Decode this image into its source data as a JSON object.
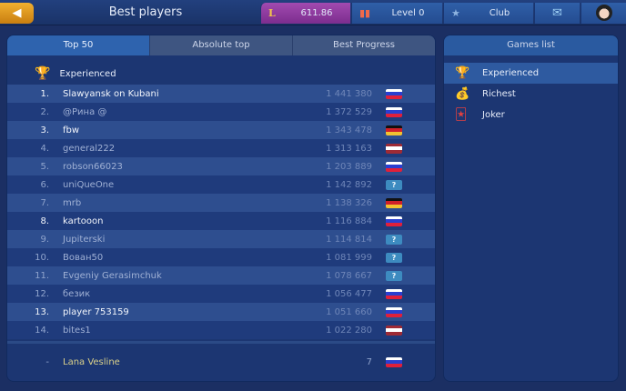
{
  "header": {
    "title": "Best players",
    "coins": "611.86",
    "level": "Level 0",
    "club": "Club"
  },
  "tabs": [
    "Top 50",
    "Absolute top",
    "Best Progress"
  ],
  "category": "Experienced",
  "rows": [
    {
      "rank": "1.",
      "name": "Slawyansk on Kubani",
      "score": "1 441 380",
      "flag": "ru",
      "highlight": true
    },
    {
      "rank": "2.",
      "name": "@Рина @",
      "score": "1 372 529",
      "flag": "ru",
      "highlight": false
    },
    {
      "rank": "3.",
      "name": "fbw",
      "score": "1 343 478",
      "flag": "de",
      "highlight": true
    },
    {
      "rank": "4.",
      "name": "general222",
      "score": "1 313 163",
      "flag": "lv",
      "highlight": false
    },
    {
      "rank": "5.",
      "name": "robson66023",
      "score": "1 203 889",
      "flag": "ru",
      "highlight": false
    },
    {
      "rank": "6.",
      "name": "uniQueOne",
      "score": "1 142 892",
      "flag": "?",
      "highlight": false
    },
    {
      "rank": "7.",
      "name": "mrb",
      "score": "1 138 326",
      "flag": "de",
      "highlight": false
    },
    {
      "rank": "8.",
      "name": "kartooon",
      "score": "1 116 884",
      "flag": "ru",
      "highlight": true
    },
    {
      "rank": "9.",
      "name": "Jupiterski",
      "score": "1 114 814",
      "flag": "?",
      "highlight": false
    },
    {
      "rank": "10.",
      "name": "Вован50",
      "score": "1 081 999",
      "flag": "?",
      "highlight": false
    },
    {
      "rank": "11.",
      "name": "Evgeniy Gerasimchuk",
      "score": "1 078 667",
      "flag": "?",
      "highlight": false
    },
    {
      "rank": "12.",
      "name": "безик",
      "score": "1 056 477",
      "flag": "ru",
      "highlight": false
    },
    {
      "rank": "13.",
      "name": "player 753159",
      "score": "1 051 660",
      "flag": "ru",
      "highlight": true
    },
    {
      "rank": "14.",
      "name": "bites1",
      "score": "1 022 280",
      "flag": "lv",
      "highlight": false
    }
  ],
  "own": {
    "rank": "-",
    "name": "Lana Vesline",
    "score": "7",
    "flag": "ru"
  },
  "games": {
    "title": "Games list",
    "items": [
      {
        "label": "Experienced",
        "icon": "trophy-icon",
        "selected": true
      },
      {
        "label": "Richest",
        "icon": "money-bag-icon",
        "selected": false
      },
      {
        "label": "Joker",
        "icon": "joker-icon",
        "selected": false
      }
    ]
  }
}
